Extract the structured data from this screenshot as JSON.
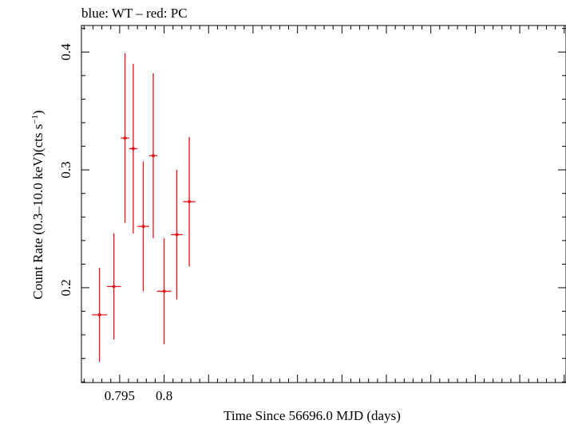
{
  "chart_data": {
    "type": "scatter",
    "title": "blue: WT – red: PC",
    "xlabel": "Time Since 56696.0 MJD (days)",
    "ylabel_main": "Count Rate (0.3–10.0 keV)(cts s",
    "ylabel_sup": "−1",
    "ylabel_end": ")",
    "xlim": [
      0.7907,
      0.8452
    ],
    "ylim": [
      0.1195,
      0.4225
    ],
    "x_ticks": [
      {
        "value": 0.795,
        "label": "0.795"
      },
      {
        "value": 0.8,
        "label": "0.8"
      }
    ],
    "y_ticks": [
      {
        "value": 0.2,
        "label": "0.2"
      },
      {
        "value": 0.3,
        "label": "0.3"
      },
      {
        "value": 0.4,
        "label": "0.4"
      }
    ],
    "grid": false,
    "series": [
      {
        "color": "#e8141c",
        "points": [
          {
            "x": 0.79273,
            "xerr": 0.00085,
            "y": 0.177,
            "yerr_low": 0.04,
            "yerr_high": 0.04
          },
          {
            "x": 0.79435,
            "xerr": 0.0008,
            "y": 0.201,
            "yerr_low": 0.045,
            "yerr_high": 0.045
          },
          {
            "x": 0.7956,
            "xerr": 0.00047,
            "y": 0.327,
            "yerr_low": 0.072,
            "yerr_high": 0.072
          },
          {
            "x": 0.79653,
            "xerr": 0.00047,
            "y": 0.318,
            "yerr_low": 0.072,
            "yerr_high": 0.072
          },
          {
            "x": 0.79766,
            "xerr": 0.00066,
            "y": 0.252,
            "yerr_low": 0.055,
            "yerr_high": 0.055
          },
          {
            "x": 0.79878,
            "xerr": 0.00047,
            "y": 0.312,
            "yerr_low": 0.07,
            "yerr_high": 0.07
          },
          {
            "x": 0.8,
            "xerr": 0.0008,
            "y": 0.197,
            "yerr_low": 0.045,
            "yerr_high": 0.045
          },
          {
            "x": 0.80143,
            "xerr": 0.00066,
            "y": 0.245,
            "yerr_low": 0.055,
            "yerr_high": 0.055
          },
          {
            "x": 0.80283,
            "xerr": 0.0007,
            "y": 0.273,
            "yerr_low": 0.055,
            "yerr_high": 0.055
          }
        ]
      }
    ]
  }
}
